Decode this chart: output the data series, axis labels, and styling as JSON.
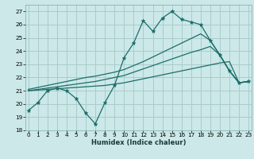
{
  "xlabel": "Humidex (Indice chaleur)",
  "bg_color": "#cce8e8",
  "grid_color": "#aacccc",
  "line_color": "#1a6e6a",
  "ylim": [
    18,
    27.5
  ],
  "xlim": [
    -0.3,
    23.3
  ],
  "yticks": [
    18,
    19,
    20,
    21,
    22,
    23,
    24,
    25,
    26,
    27
  ],
  "xticks": [
    0,
    1,
    2,
    3,
    4,
    5,
    6,
    7,
    8,
    9,
    10,
    11,
    12,
    13,
    14,
    15,
    16,
    17,
    18,
    19,
    20,
    21,
    22,
    23
  ],
  "s1x": [
    0,
    1,
    2,
    3,
    4,
    5,
    6,
    7,
    8,
    9,
    10,
    11,
    12,
    13,
    14,
    15,
    16,
    17,
    18,
    19,
    20,
    21,
    22,
    23
  ],
  "s1y": [
    19.5,
    20.1,
    21.0,
    21.2,
    21.0,
    20.4,
    19.3,
    18.5,
    20.1,
    21.4,
    23.5,
    24.6,
    26.3,
    25.5,
    26.5,
    27.0,
    26.4,
    26.2,
    26.0,
    24.8,
    23.7,
    22.5,
    21.6,
    21.7
  ],
  "s2x": [
    0,
    1,
    2,
    3,
    4,
    5,
    6,
    7,
    8,
    9,
    10,
    11,
    12,
    13,
    14,
    15,
    16,
    17,
    18,
    19,
    20,
    21,
    22,
    23
  ],
  "s2y": [
    21.0,
    21.05,
    21.1,
    21.15,
    21.2,
    21.25,
    21.3,
    21.35,
    21.4,
    21.5,
    21.6,
    21.75,
    21.9,
    22.05,
    22.2,
    22.35,
    22.5,
    22.65,
    22.8,
    22.95,
    23.1,
    23.2,
    21.6,
    21.7
  ],
  "s3x": [
    0,
    1,
    2,
    3,
    4,
    5,
    6,
    7,
    8,
    9,
    10,
    11,
    12,
    13,
    14,
    15,
    16,
    17,
    18,
    19,
    20,
    21,
    22,
    23
  ],
  "s3y": [
    21.0,
    21.1,
    21.2,
    21.3,
    21.4,
    21.5,
    21.6,
    21.7,
    21.85,
    22.0,
    22.15,
    22.4,
    22.65,
    22.9,
    23.15,
    23.4,
    23.65,
    23.9,
    24.1,
    24.35,
    23.7,
    22.5,
    21.6,
    21.7
  ],
  "s4x": [
    0,
    1,
    2,
    3,
    4,
    5,
    6,
    7,
    8,
    9,
    10,
    11,
    12,
    13,
    14,
    15,
    16,
    17,
    18,
    19,
    20,
    21,
    22,
    23
  ],
  "s4y": [
    21.1,
    21.25,
    21.4,
    21.55,
    21.7,
    21.85,
    22.0,
    22.1,
    22.25,
    22.4,
    22.6,
    22.9,
    23.2,
    23.55,
    23.9,
    24.25,
    24.6,
    24.95,
    25.3,
    24.8,
    23.7,
    22.5,
    21.6,
    21.7
  ],
  "xlabel_fontsize": 6.0,
  "tick_fontsize": 5.2
}
